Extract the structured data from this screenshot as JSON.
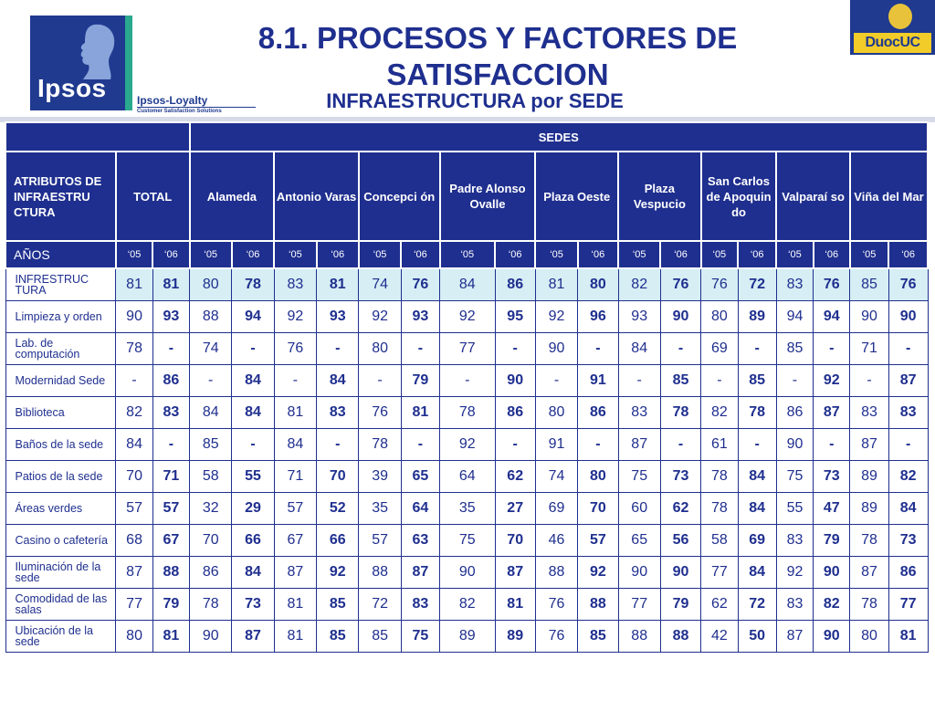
{
  "logos": {
    "ipsos": "Ipsos",
    "ipsos_loyalty": "Ipsos-Loyalty",
    "ipsos_loyalty_tagline": "Customer Satisfaction Solutions",
    "duoc": "DuocUC"
  },
  "title": "8.1. PROCESOS Y FACTORES DE SATISFACCION",
  "subtitle": "INFRAESTRUCTURA por SEDE",
  "table": {
    "sedes_label": "SEDES",
    "atributos_label": "ATRIBUTOS DE INFRAESTRU CTURA",
    "total_label": "TOTAL",
    "anos_label": "AÑOS",
    "year_labels": [
      "‘05",
      "‘06"
    ],
    "sedes": [
      "Alameda",
      "Antonio Varas",
      "Concepci ón",
      "Padre Alonso Ovalle",
      "Plaza Oeste",
      "Plaza Vespucio",
      "San Carlos de Apoquin do",
      "Valparaí so",
      "Viña del Mar"
    ],
    "rows": [
      {
        "label": "INFRESTRUC TURA",
        "values": [
          "81",
          "81",
          "80",
          "78",
          "83",
          "81",
          "74",
          "76",
          "84",
          "86",
          "81",
          "80",
          "82",
          "76",
          "76",
          "72",
          "83",
          "76",
          "85",
          "76"
        ]
      },
      {
        "label": "Limpieza y orden",
        "values": [
          "90",
          "93",
          "88",
          "94",
          "92",
          "93",
          "92",
          "93",
          "92",
          "95",
          "92",
          "96",
          "93",
          "90",
          "80",
          "89",
          "94",
          "94",
          "90",
          "90"
        ]
      },
      {
        "label": "Lab. de computación",
        "values": [
          "78",
          "-",
          "74",
          "-",
          "76",
          "-",
          "80",
          "-",
          "77",
          "-",
          "90",
          "-",
          "84",
          "-",
          "69",
          "-",
          "85",
          "-",
          "71",
          "-"
        ]
      },
      {
        "label": "Modernidad Sede",
        "values": [
          "-",
          "86",
          "-",
          "84",
          "-",
          "84",
          "-",
          "79",
          "-",
          "90",
          "-",
          "91",
          "-",
          "85",
          "-",
          "85",
          "-",
          "92",
          "-",
          "87"
        ]
      },
      {
        "label": "Biblioteca",
        "values": [
          "82",
          "83",
          "84",
          "84",
          "81",
          "83",
          "76",
          "81",
          "78",
          "86",
          "80",
          "86",
          "83",
          "78",
          "82",
          "78",
          "86",
          "87",
          "83",
          "83"
        ]
      },
      {
        "label": "Baños de la sede",
        "values": [
          "84",
          "-",
          "85",
          "-",
          "84",
          "-",
          "78",
          "-",
          "92",
          "-",
          "91",
          "-",
          "87",
          "-",
          "61",
          "-",
          "90",
          "-",
          "87",
          "-"
        ]
      },
      {
        "label": "Patios de la sede",
        "values": [
          "70",
          "71",
          "58",
          "55",
          "71",
          "70",
          "39",
          "65",
          "64",
          "62",
          "74",
          "80",
          "75",
          "73",
          "78",
          "84",
          "75",
          "73",
          "89",
          "82"
        ]
      },
      {
        "label": "Áreas verdes",
        "values": [
          "57",
          "57",
          "32",
          "29",
          "57",
          "52",
          "35",
          "64",
          "35",
          "27",
          "69",
          "70",
          "60",
          "62",
          "78",
          "84",
          "55",
          "47",
          "89",
          "84"
        ]
      },
      {
        "label": "Casino o cafetería",
        "values": [
          "68",
          "67",
          "70",
          "66",
          "67",
          "66",
          "57",
          "63",
          "75",
          "70",
          "46",
          "57",
          "65",
          "56",
          "58",
          "69",
          "83",
          "79",
          "78",
          "73"
        ]
      },
      {
        "label": "Iluminación de la sede",
        "values": [
          "87",
          "88",
          "86",
          "84",
          "87",
          "92",
          "88",
          "87",
          "90",
          "87",
          "88",
          "92",
          "90",
          "90",
          "77",
          "84",
          "92",
          "90",
          "87",
          "86"
        ]
      },
      {
        "label": "Comodidad de las salas",
        "values": [
          "77",
          "79",
          "78",
          "73",
          "81",
          "85",
          "72",
          "83",
          "82",
          "81",
          "76",
          "88",
          "77",
          "79",
          "62",
          "72",
          "83",
          "82",
          "78",
          "77"
        ]
      },
      {
        "label": "Ubicación de la sede",
        "values": [
          "80",
          "81",
          "90",
          "87",
          "81",
          "85",
          "85",
          "75",
          "89",
          "89",
          "76",
          "85",
          "88",
          "88",
          "42",
          "50",
          "87",
          "90",
          "80",
          "81"
        ]
      }
    ]
  }
}
